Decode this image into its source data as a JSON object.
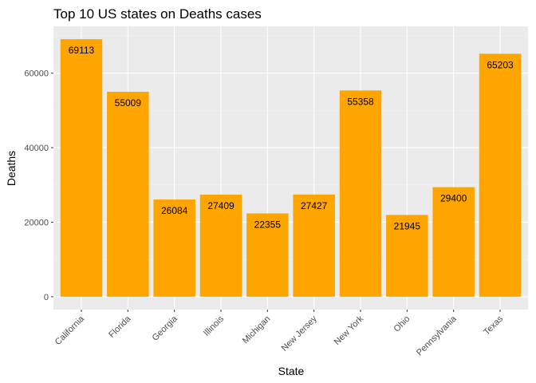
{
  "chart_data": {
    "type": "bar",
    "title": "Top 10 US states on Deaths cases",
    "xlabel": "State",
    "ylabel": "Deaths",
    "categories": [
      "California",
      "Florida",
      "Georgia",
      "Illinois",
      "Michigan",
      "New Jersey",
      "New York",
      "Ohio",
      "Pennsylvania",
      "Texas"
    ],
    "values": [
      69113,
      55009,
      26084,
      27409,
      22355,
      27427,
      55358,
      21945,
      29400,
      65203
    ],
    "value_labels": [
      "69113",
      "55009",
      "26084",
      "27409",
      "22355",
      "27427",
      "55358",
      "21945",
      "29400",
      "65203"
    ],
    "yticks": [
      0,
      20000,
      40000,
      60000
    ],
    "ytick_labels": [
      "0",
      "20000",
      "40000",
      "60000"
    ],
    "ylim": [
      -3456,
      72569
    ],
    "grid": true,
    "colors": {
      "bar": "#FFA500",
      "panel": "#EBEBEB",
      "grid_major": "#FFFFFF",
      "grid_minor": "#F5F5F5"
    }
  }
}
